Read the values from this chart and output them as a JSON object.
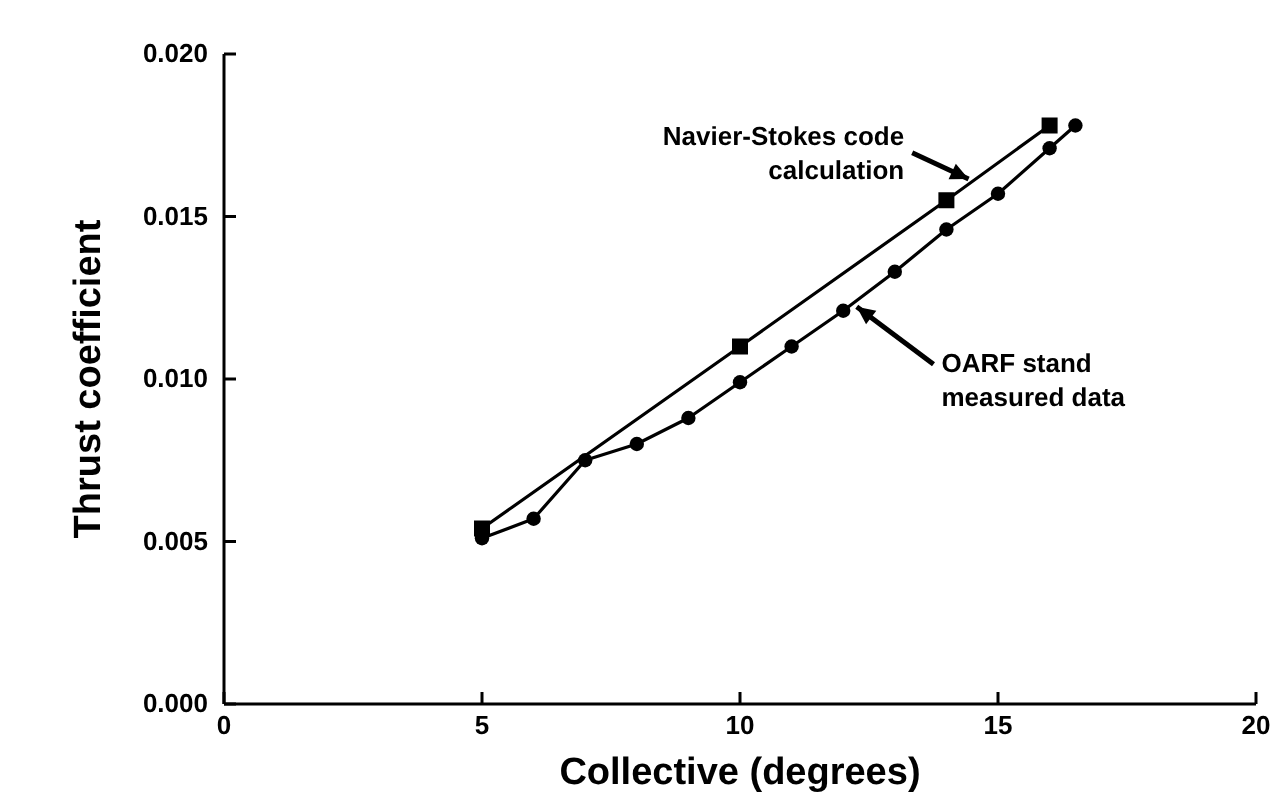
{
  "chart_data": {
    "type": "line",
    "xlabel": "Collective (degrees)",
    "ylabel": "Thrust coefficient",
    "xlim": [
      0,
      20
    ],
    "xticks": [
      0,
      5,
      10,
      15,
      20
    ],
    "ylim": [
      0,
      0.02
    ],
    "yticks": [
      {
        "value": 0,
        "label": "0.000"
      },
      {
        "value": 0.005,
        "label": "0.005"
      },
      {
        "value": 0.01,
        "label": "0.010"
      },
      {
        "value": 0.015,
        "label": "0.015"
      },
      {
        "value": 0.02,
        "label": "0.020"
      }
    ],
    "series": [
      {
        "color": "#000000",
        "marker": "square",
        "x": [
          5,
          10,
          14,
          16
        ],
        "values": [
          0.0054,
          0.011,
          0.0155,
          0.0178
        ]
      },
      {
        "color": "#000000",
        "marker": "circle",
        "x": [
          5,
          6,
          7,
          8,
          9,
          10,
          11,
          12,
          13,
          14,
          15,
          16,
          16.5
        ],
        "values": [
          0.0051,
          0.0057,
          0.0075,
          0.008,
          0.0088,
          0.0099,
          0.011,
          0.0121,
          0.0133,
          0.0146,
          0.0157,
          0.0171,
          0.0178
        ]
      }
    ],
    "annotations": [
      {
        "text": "Navier-Stokes code\ncalculation",
        "x": 14.5,
        "y": 0.0161
      },
      {
        "text": "OARF stand\nmeasured data",
        "x": 12.2,
        "y": 0.0123
      }
    ]
  }
}
